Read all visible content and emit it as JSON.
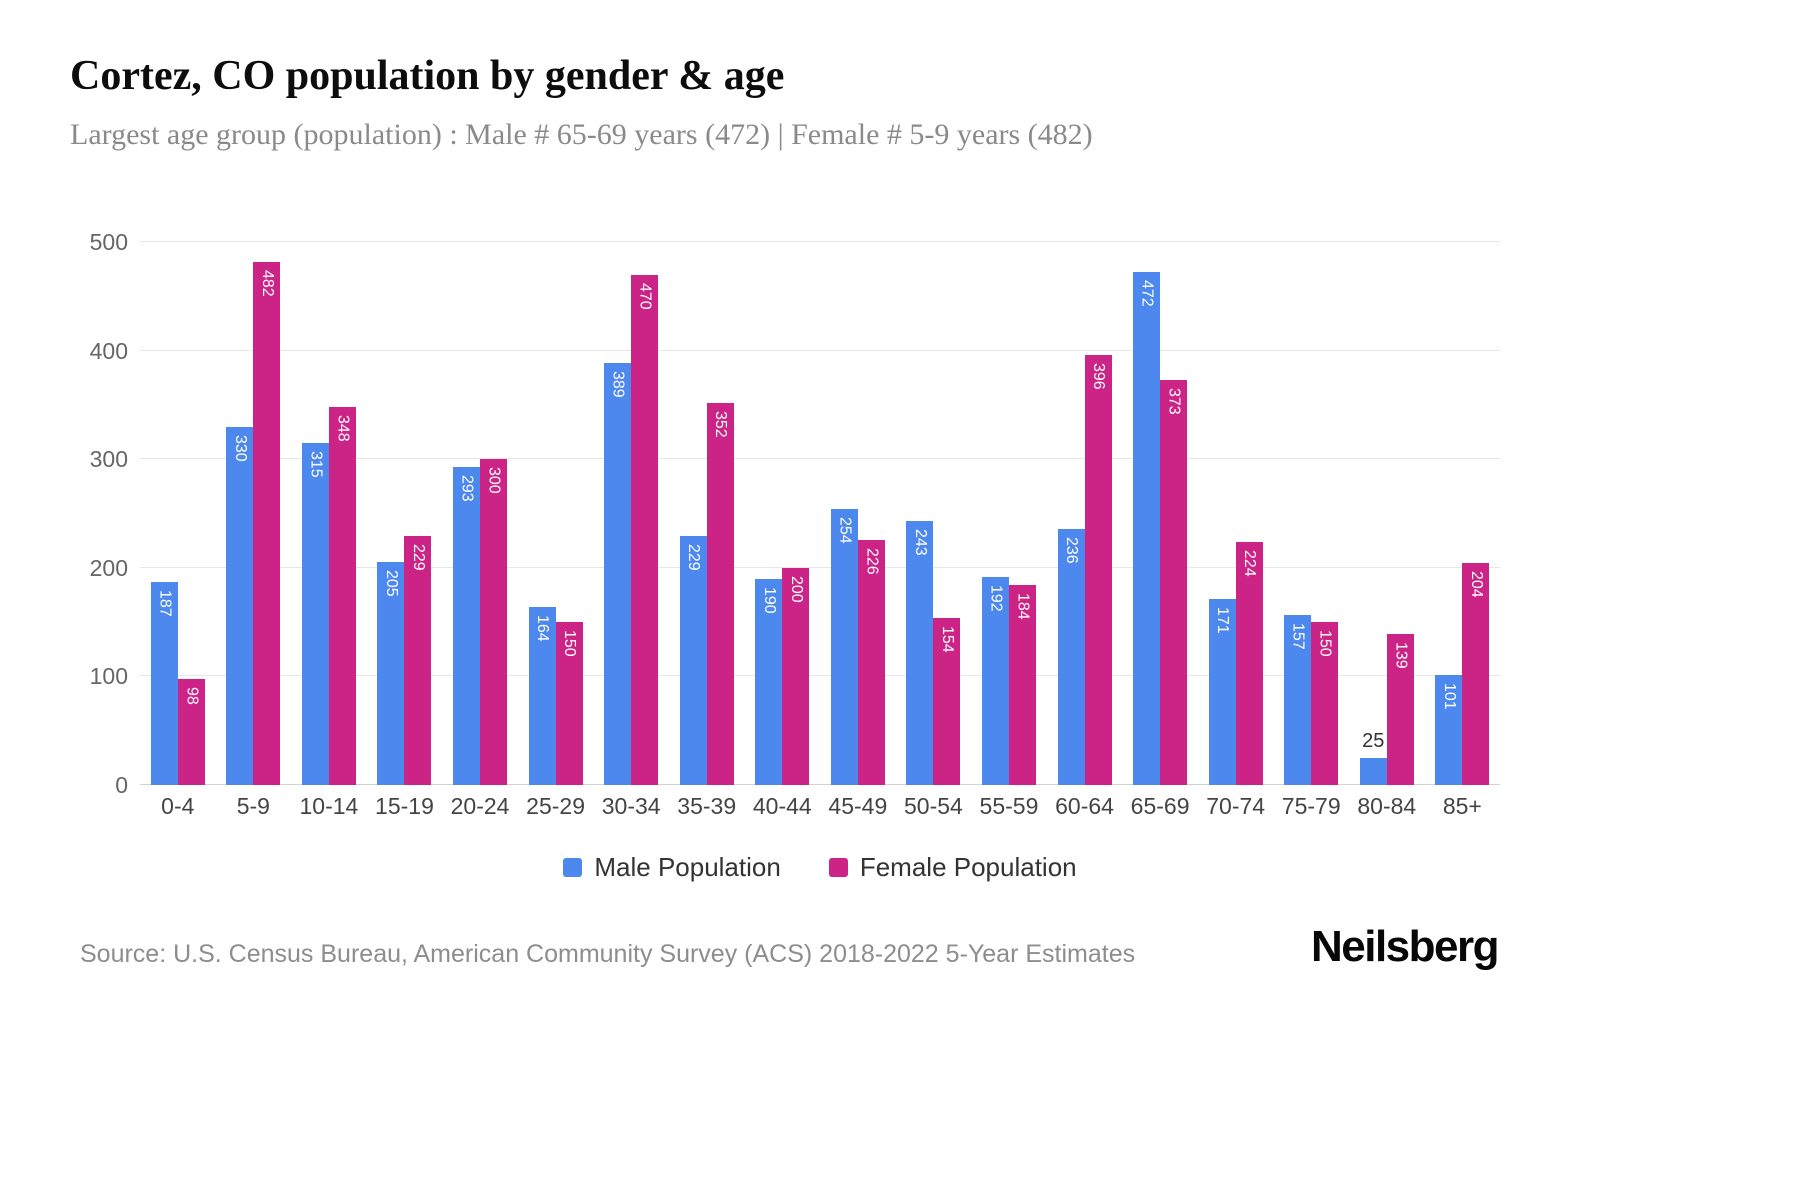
{
  "header": {
    "title": "Cortez, CO population by gender & age",
    "subtitle": "Largest age group (population) : Male # 65-69 years (472) | Female # 5-9 years (482)"
  },
  "footer": {
    "source": "Source: U.S. Census Bureau, American Community Survey (ACS) 2018-2022 5-Year Estimates",
    "logo": "Neilsberg"
  },
  "colors": {
    "male": "#4d88ef",
    "female": "#cc2386",
    "gridline": "#e7e7e7",
    "axis_text": "#666666"
  },
  "chart_data": {
    "type": "bar",
    "title": "Cortez, CO population by gender & age",
    "xlabel": "",
    "ylabel": "",
    "ylim": [
      0,
      500
    ],
    "yticks": [
      0,
      100,
      200,
      300,
      400,
      500
    ],
    "grid": true,
    "legend_position": "bottom",
    "categories": [
      "0-4",
      "5-9",
      "10-14",
      "15-19",
      "20-24",
      "25-29",
      "30-34",
      "35-39",
      "40-44",
      "45-49",
      "50-54",
      "55-59",
      "60-64",
      "65-69",
      "70-74",
      "75-79",
      "80-84",
      "85+"
    ],
    "series": [
      {
        "name": "Male Population",
        "color": "#4d88ef",
        "values": [
          187,
          330,
          315,
          205,
          293,
          164,
          389,
          229,
          190,
          254,
          243,
          192,
          236,
          472,
          171,
          157,
          25,
          101
        ]
      },
      {
        "name": "Female Population",
        "color": "#cc2386",
        "values": [
          98,
          482,
          348,
          229,
          300,
          150,
          470,
          352,
          200,
          226,
          154,
          184,
          396,
          373,
          224,
          150,
          139,
          204
        ]
      }
    ]
  }
}
